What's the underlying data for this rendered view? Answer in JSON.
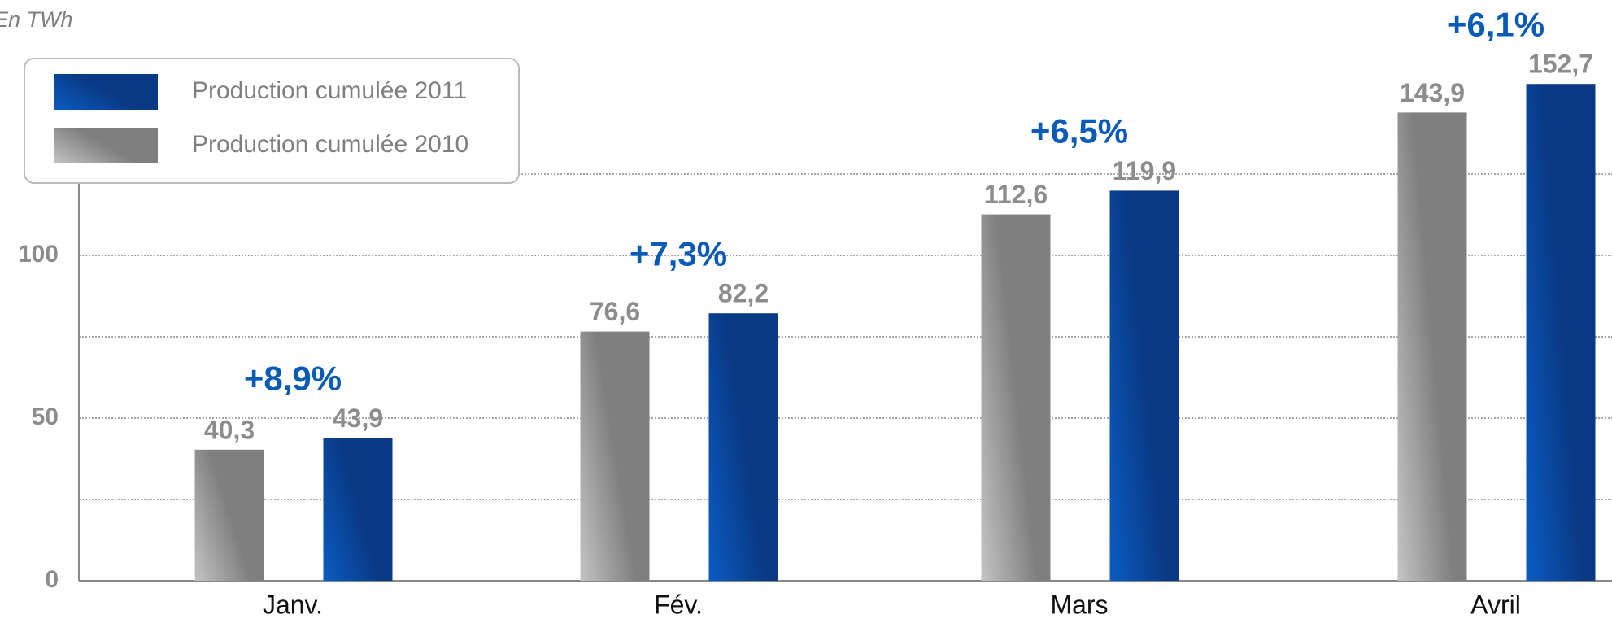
{
  "chart_data": {
    "type": "bar",
    "y_unit_label": "En TWh",
    "categories": [
      "Janv.",
      "Fév.",
      "Mars",
      "Avril"
    ],
    "series": [
      {
        "name": "Production cumulée 2010",
        "color": "#7f7f7f",
        "values": [
          40.3,
          76.6,
          112.6,
          143.9
        ],
        "value_labels": [
          "40,3",
          "76,6",
          "112,6",
          "143,9"
        ]
      },
      {
        "name": "Production cumulée 2011",
        "color": "#0a3a85",
        "values": [
          43.9,
          82.2,
          119.9,
          152.7
        ],
        "value_labels": [
          "43,9",
          "82,2",
          "119,9",
          "152,7"
        ]
      }
    ],
    "annotations": [
      "+8,9%",
      "+7,3%",
      "+6,5%",
      "+6,1%"
    ],
    "ylim": [
      0,
      160
    ],
    "yticks": [
      0,
      50,
      100
    ],
    "grid_lines": [
      25,
      50,
      75,
      100,
      125
    ],
    "grid": true
  }
}
